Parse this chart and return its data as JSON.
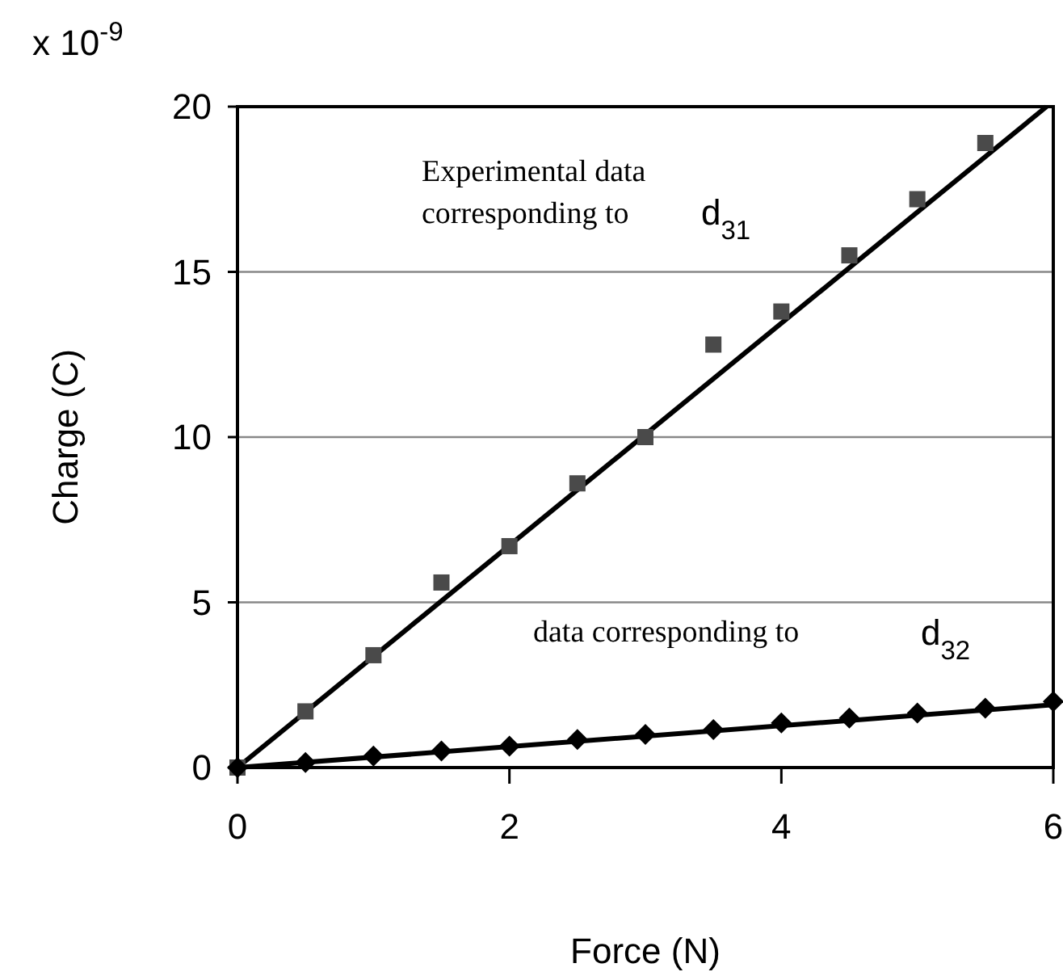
{
  "chart_data": {
    "type": "scatter",
    "xlabel": "Force (N)",
    "ylabel": "Charge (C)",
    "xlim": [
      0,
      6
    ],
    "xticks": [
      0,
      2,
      4,
      6
    ],
    "ylim": [
      0,
      20
    ],
    "yticks": [
      0,
      5,
      10,
      15,
      20
    ],
    "grid": "y",
    "annotations": [
      "x 10$^{-9}$",
      "Experimental data",
      "corresponding to",
      "d$_{31}$",
      "data corresponding to",
      "d$_{32}$"
    ],
    "series": [
      {
        "marker": "square",
        "color": "#4a4a4a",
        "x": [
          0,
          0.5,
          1,
          1.5,
          2,
          2.5,
          3,
          3.5,
          4,
          4.5,
          5,
          5.5
        ],
        "values": [
          0,
          1.7,
          3.4,
          5.6,
          6.7,
          8.6,
          10,
          12.8,
          13.8,
          15.5,
          17.2,
          18.9
        ]
      },
      {
        "marker": "diamond",
        "color": "#000000",
        "x": [
          0,
          0.5,
          1,
          1.5,
          2,
          2.5,
          3,
          3.5,
          4,
          4.5,
          5,
          5.5,
          6
        ],
        "values": [
          0,
          0.15,
          0.35,
          0.5,
          0.65,
          0.85,
          1.0,
          1.15,
          1.35,
          1.5,
          1.65,
          1.8,
          2.0
        ]
      },
      {
        "type": "line",
        "line_style": "solid",
        "color": "#000000",
        "x": [
          0,
          5.95
        ],
        "values": [
          0,
          20
        ]
      },
      {
        "type": "line",
        "line_style": "solid",
        "color": "#000000",
        "x": [
          0,
          6
        ],
        "values": [
          0,
          1.9
        ]
      }
    ]
  }
}
